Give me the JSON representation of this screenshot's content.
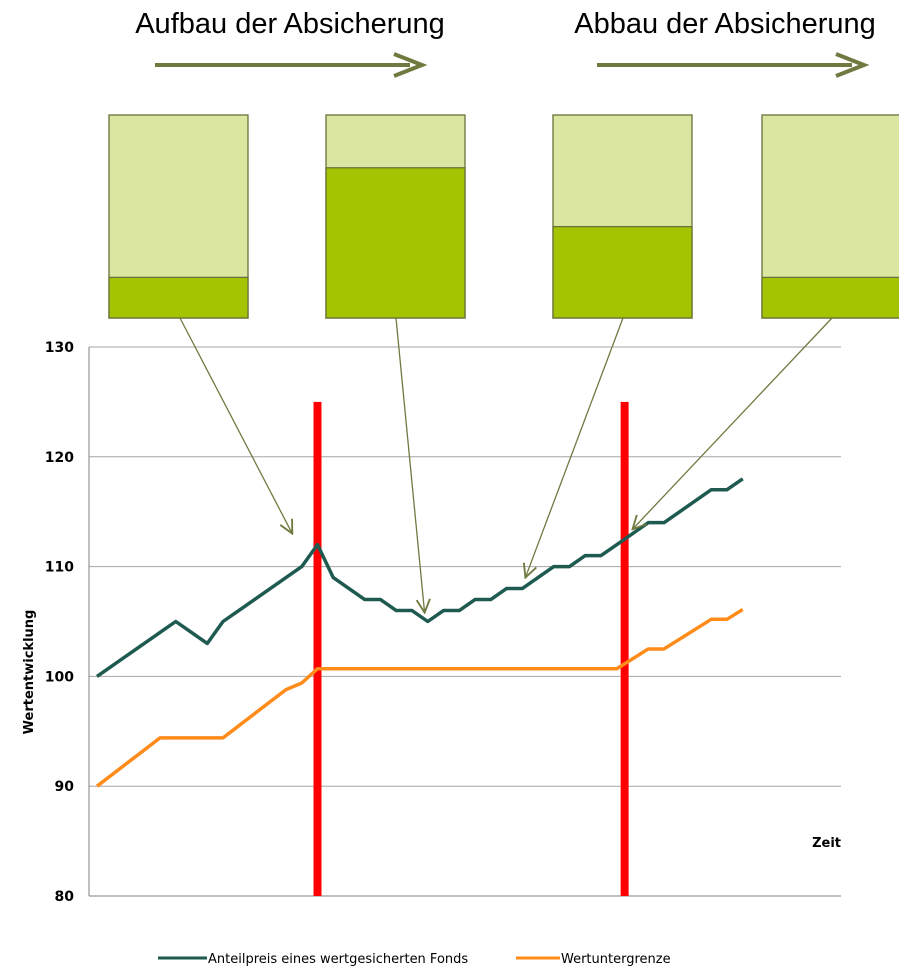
{
  "header": {
    "left_title": "Aufbau der Absicherung",
    "right_title": "Abbau der Absicherung",
    "arrow_color": "#6f7a40"
  },
  "allocation_boxes": [
    {
      "secured_share": 0.2
    },
    {
      "secured_share": 0.74
    },
    {
      "secured_share": 0.45
    },
    {
      "secured_share": 0.2
    }
  ],
  "allocation_colors": {
    "light": "#dbe6a0",
    "dark": "#a4c300",
    "border": "#66733a"
  },
  "chart_data": {
    "type": "line",
    "ylabel": "Wertentwicklung",
    "xlabel": "Zeit",
    "ylim": [
      80,
      130
    ],
    "yticks": [
      80,
      90,
      100,
      110,
      120,
      130
    ],
    "grid": true,
    "x": [
      0,
      1,
      2,
      3,
      4,
      5,
      6,
      7,
      8,
      9,
      10,
      11,
      12,
      13,
      14,
      15,
      16,
      17,
      18,
      19,
      20,
      21,
      22,
      23,
      24,
      25,
      26,
      27,
      28,
      29,
      30,
      31,
      32,
      33,
      34,
      35,
      36,
      37,
      38,
      39,
      40,
      41,
      42,
      43,
      44,
      45,
      46
    ],
    "series": [
      {
        "name": "Anteilpreis eines wertgesicherten Fonds",
        "color": "#1f5a50",
        "values": [
          100,
          101,
          102,
          103,
          104,
          105,
          104,
          103,
          105,
          106,
          107,
          108,
          109,
          110,
          112,
          109,
          108,
          107,
          107,
          106,
          106,
          105,
          106,
          106,
          107,
          107,
          108,
          108,
          109,
          110,
          110,
          111,
          111,
          112,
          113,
          114,
          114,
          115,
          116,
          117,
          117,
          118,
          null,
          null,
          null,
          null,
          null
        ]
      },
      {
        "name": "Wertuntergrenze",
        "color": "#ff8c1a",
        "values": [
          90,
          91.1,
          92.2,
          93.3,
          94.4,
          94.4,
          94.4,
          94.4,
          94.4,
          95.5,
          96.6,
          97.7,
          98.8,
          99.4,
          100.7,
          100.7,
          100.7,
          100.7,
          100.7,
          100.7,
          100.7,
          100.7,
          100.7,
          100.7,
          100.7,
          100.7,
          100.7,
          100.7,
          100.7,
          100.7,
          100.7,
          100.7,
          100.7,
          100.7,
          101.6,
          102.5,
          102.5,
          103.4,
          104.3,
          105.2,
          105.2,
          106.1,
          null,
          null,
          null,
          null,
          null
        ]
      }
    ],
    "markers": [
      {
        "x": 14,
        "y_top": 125,
        "color": "#ff0000"
      },
      {
        "x": 33.5,
        "y_top": 125,
        "color": "#ff0000"
      }
    ],
    "annotations": [
      {
        "box_index": 0,
        "point": [
          12.4,
          113
        ]
      },
      {
        "box_index": 1,
        "point": [
          20.8,
          105.8
        ]
      },
      {
        "box_index": 2,
        "point": [
          27.2,
          109
        ]
      },
      {
        "box_index": 3,
        "point": [
          34,
          113.4
        ]
      }
    ],
    "gridline_color": "#a6a6a6",
    "axis_color": "#808080"
  }
}
